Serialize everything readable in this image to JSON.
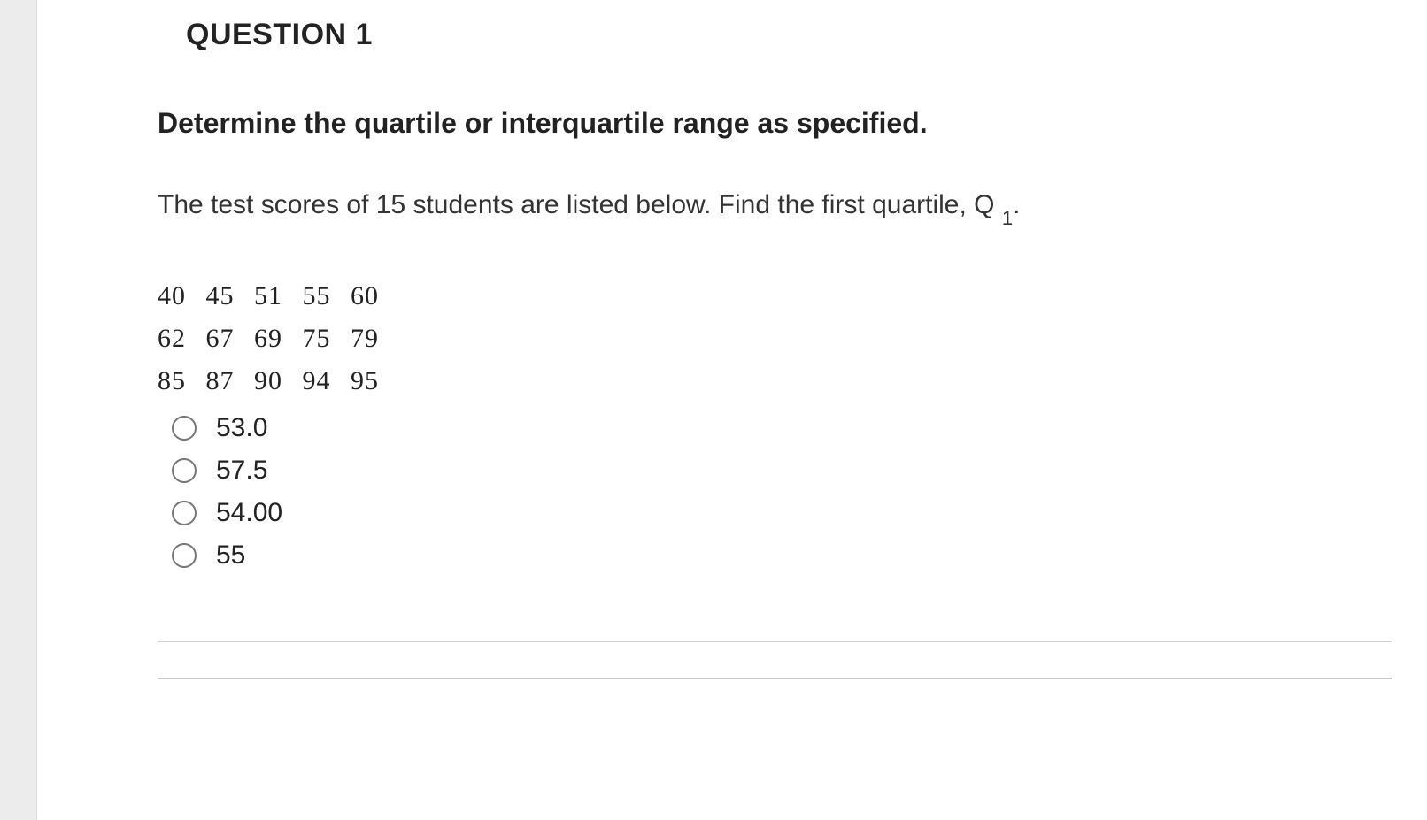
{
  "question": {
    "heading": "QUESTION 1",
    "instruction": "Determine the quartile or interquartile range as specified.",
    "prompt_prefix": "The test scores of 15 students are listed below. Find the first quartile, Q",
    "prompt_sub": "1",
    "prompt_suffix": ".",
    "data_rows": [
      "40 45 51 55 60",
      "62 67 69 75 79",
      "85 87 90 94 95"
    ],
    "options": [
      {
        "label": "53.0"
      },
      {
        "label": "57.5"
      },
      {
        "label": "54.00"
      },
      {
        "label": "55"
      }
    ]
  },
  "colors": {
    "page_bg": "#f5f5f5",
    "content_bg": "#ffffff",
    "gutter_bg": "#ececec",
    "text": "#222222",
    "radio_border": "#777777",
    "divider": "#d0d0d0"
  }
}
